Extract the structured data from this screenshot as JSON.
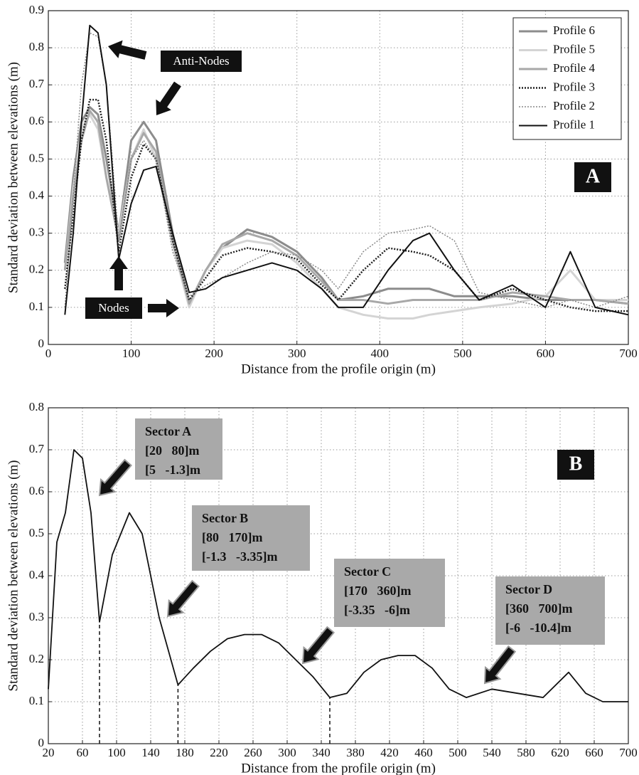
{
  "chart_data": [
    {
      "type": "line",
      "xlabel": "Distance from the profile origin (m)",
      "ylabel": "Standard deviation between elevations (m)",
      "xlim": [
        0,
        700
      ],
      "ylim": [
        0,
        0.9
      ],
      "xticks": [
        0,
        100,
        200,
        300,
        400,
        500,
        600,
        700
      ],
      "yticks": [
        0,
        0.1,
        0.2,
        0.3,
        0.4,
        0.5,
        0.6,
        0.7,
        0.8,
        0.9
      ],
      "grid": true,
      "legend": "upper right",
      "x": [
        20,
        30,
        40,
        50,
        60,
        70,
        85,
        100,
        115,
        130,
        150,
        170,
        190,
        210,
        240,
        270,
        300,
        330,
        350,
        380,
        410,
        440,
        460,
        490,
        520,
        560,
        600,
        630,
        660,
        700
      ],
      "series": [
        {
          "name": "Profile 6",
          "color": "#8c8c8c",
          "style": "solid",
          "values": [
            0.22,
            0.45,
            0.6,
            0.64,
            0.62,
            0.5,
            0.3,
            0.55,
            0.6,
            0.55,
            0.3,
            0.11,
            0.2,
            0.26,
            0.31,
            0.29,
            0.25,
            0.18,
            0.12,
            0.13,
            0.15,
            0.15,
            0.15,
            0.13,
            0.13,
            0.13,
            0.12,
            0.12,
            0.12,
            0.11
          ]
        },
        {
          "name": "Profile 5",
          "color": "#d4d4d4",
          "style": "solid",
          "values": [
            0.2,
            0.42,
            0.58,
            0.62,
            0.58,
            0.45,
            0.3,
            0.5,
            0.58,
            0.5,
            0.27,
            0.1,
            0.2,
            0.26,
            0.28,
            0.27,
            0.22,
            0.15,
            0.1,
            0.08,
            0.07,
            0.07,
            0.08,
            0.09,
            0.1,
            0.11,
            0.13,
            0.2,
            0.12,
            0.12
          ]
        },
        {
          "name": "Profile 4",
          "color": "#a8a8a8",
          "style": "solid",
          "values": [
            0.2,
            0.4,
            0.55,
            0.63,
            0.6,
            0.45,
            0.28,
            0.5,
            0.57,
            0.52,
            0.28,
            0.11,
            0.2,
            0.27,
            0.3,
            0.28,
            0.24,
            0.17,
            0.12,
            0.12,
            0.11,
            0.12,
            0.12,
            0.12,
            0.12,
            0.14,
            0.13,
            0.12,
            0.12,
            0.11
          ]
        },
        {
          "name": "Profile 3",
          "color": "#222222",
          "style": "dotted",
          "values": [
            0.15,
            0.35,
            0.55,
            0.66,
            0.66,
            0.55,
            0.25,
            0.45,
            0.54,
            0.5,
            0.28,
            0.12,
            0.18,
            0.24,
            0.26,
            0.25,
            0.23,
            0.16,
            0.12,
            0.2,
            0.26,
            0.25,
            0.24,
            0.2,
            0.12,
            0.15,
            0.12,
            0.1,
            0.09,
            0.09
          ]
        },
        {
          "name": "Profile 2",
          "color": "#888888",
          "style": "dotted",
          "values": [
            0.1,
            0.4,
            0.7,
            0.84,
            0.83,
            0.7,
            0.28,
            0.5,
            0.55,
            0.5,
            0.25,
            0.13,
            0.16,
            0.18,
            0.22,
            0.25,
            0.24,
            0.2,
            0.15,
            0.25,
            0.3,
            0.31,
            0.32,
            0.28,
            0.14,
            0.12,
            0.1,
            0.12,
            0.1,
            0.13
          ]
        },
        {
          "name": "Profile 1",
          "color": "#111111",
          "style": "solid",
          "values": [
            0.08,
            0.3,
            0.6,
            0.86,
            0.84,
            0.7,
            0.23,
            0.38,
            0.47,
            0.48,
            0.3,
            0.14,
            0.15,
            0.18,
            0.2,
            0.22,
            0.2,
            0.15,
            0.1,
            0.1,
            0.2,
            0.28,
            0.3,
            0.2,
            0.12,
            0.16,
            0.1,
            0.25,
            0.1,
            0.08
          ]
        }
      ],
      "annotations": [
        "Anti-Nodes",
        "Nodes",
        "A"
      ]
    },
    {
      "type": "line",
      "xlabel": "Distance from the profile origin (m)",
      "ylabel": "Standard deviation between elevations (m)",
      "xlim": [
        20,
        700
      ],
      "ylim": [
        0,
        0.8
      ],
      "xticks": [
        20,
        60,
        100,
        140,
        180,
        220,
        260,
        300,
        340,
        380,
        420,
        460,
        500,
        540,
        580,
        620,
        660,
        700
      ],
      "yticks": [
        0,
        0.1,
        0.2,
        0.3,
        0.4,
        0.5,
        0.6,
        0.7,
        0.8
      ],
      "grid": true,
      "x": [
        20,
        30,
        40,
        50,
        60,
        70,
        80,
        95,
        115,
        130,
        150,
        172,
        190,
        210,
        230,
        250,
        270,
        290,
        310,
        330,
        350,
        370,
        390,
        410,
        430,
        450,
        470,
        490,
        510,
        540,
        570,
        600,
        630,
        650,
        670,
        700
      ],
      "series": [
        {
          "color": "#111111",
          "style": "solid",
          "values": [
            0.13,
            0.48,
            0.55,
            0.7,
            0.68,
            0.55,
            0.29,
            0.45,
            0.55,
            0.5,
            0.3,
            0.14,
            0.18,
            0.22,
            0.25,
            0.26,
            0.26,
            0.24,
            0.2,
            0.16,
            0.11,
            0.12,
            0.17,
            0.2,
            0.21,
            0.21,
            0.18,
            0.13,
            0.11,
            0.13,
            0.12,
            0.11,
            0.17,
            0.12,
            0.1,
            0.1
          ]
        }
      ],
      "dividers": [
        {
          "x": 80,
          "top": 0.29
        },
        {
          "x": 172,
          "top": 0.14
        },
        {
          "x": 350,
          "top": 0.11
        }
      ],
      "sectors": [
        {
          "name": "Sector A",
          "lines": [
            "[20   80]m",
            "[5   -1.3]m"
          ]
        },
        {
          "name": "Sector B",
          "lines": [
            "[80   170]m",
            "[-1.3   -3.35]m"
          ]
        },
        {
          "name": "Sector C",
          "lines": [
            "[170   360]m",
            "[-3.35   -6]m"
          ]
        },
        {
          "name": "Sector D",
          "lines": [
            "[360   700]m",
            "[-6   -10.4]m"
          ]
        }
      ],
      "annotations": [
        "B"
      ]
    }
  ]
}
